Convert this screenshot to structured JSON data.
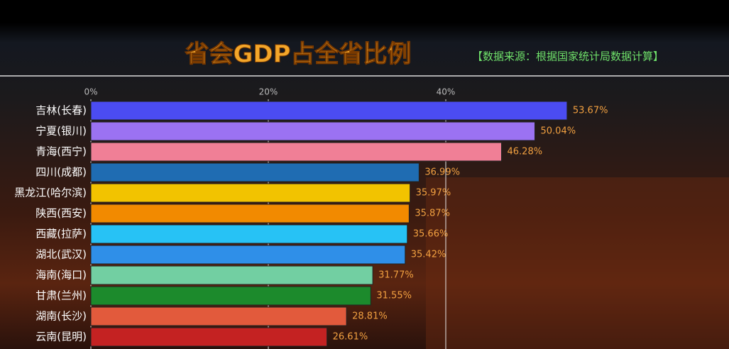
{
  "chart_data": {
    "type": "bar",
    "orientation": "horizontal",
    "title": "省会GDP占全省比例",
    "subtitle": "【数据来源：根据国家统计局数据计算】",
    "categories": [
      "吉林(长春)",
      "宁夏(银川)",
      "青海(西宁)",
      "四川(成都)",
      "黑龙江(哈尔滨)",
      "陕西(西安)",
      "西藏(拉萨)",
      "湖北(武汉)",
      "海南(海口)",
      "甘肃(兰州)",
      "湖南(长沙)",
      "云南(昆明)"
    ],
    "values": [
      53.67,
      50.04,
      46.28,
      36.99,
      35.97,
      35.87,
      35.66,
      35.42,
      31.77,
      31.55,
      28.81,
      26.61
    ],
    "value_labels": [
      "53.67%",
      "50.04%",
      "46.28%",
      "36.99%",
      "35.97%",
      "35.87%",
      "35.66%",
      "35.42%",
      "31.77%",
      "31.55%",
      "28.81%",
      "26.61%"
    ],
    "colors": [
      "#4b4cf2",
      "#9b72f2",
      "#f07f96",
      "#1f6cb2",
      "#f2c300",
      "#f28a00",
      "#27c2f5",
      "#2f8fe8",
      "#72cfa2",
      "#1c8a2c",
      "#e25a3c",
      "#c42222"
    ],
    "xlim": [
      0,
      70
    ],
    "xticks": [
      {
        "value": 0,
        "label": "0%"
      },
      {
        "value": 20,
        "label": "20%"
      },
      {
        "value": 40,
        "label": "40%"
      }
    ],
    "grid": true
  }
}
